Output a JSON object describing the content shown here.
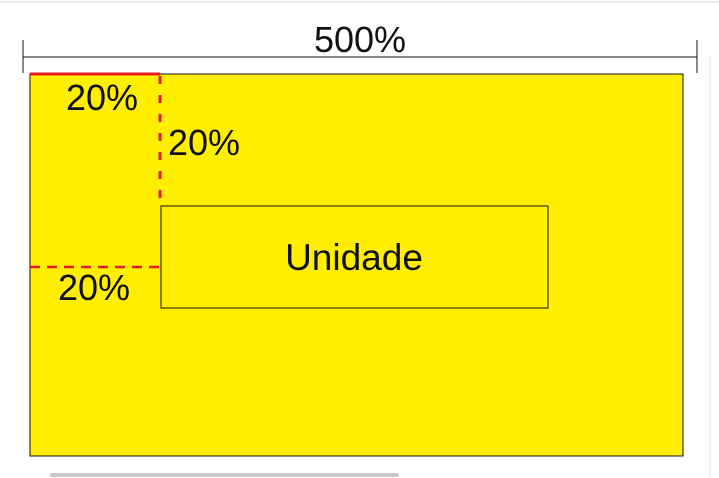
{
  "diagram": {
    "total_label": "500%",
    "unit_label": "Unidade",
    "margin_top_left_label": "20%",
    "margin_top_inner_label": "20%",
    "margin_left_label": "20%"
  },
  "colors": {
    "background": "#ffffff",
    "area_fill": "#ffee00",
    "outline": "#111111",
    "margin_indicator": "#e31b23",
    "scrollbar": "#c8c8c8"
  }
}
